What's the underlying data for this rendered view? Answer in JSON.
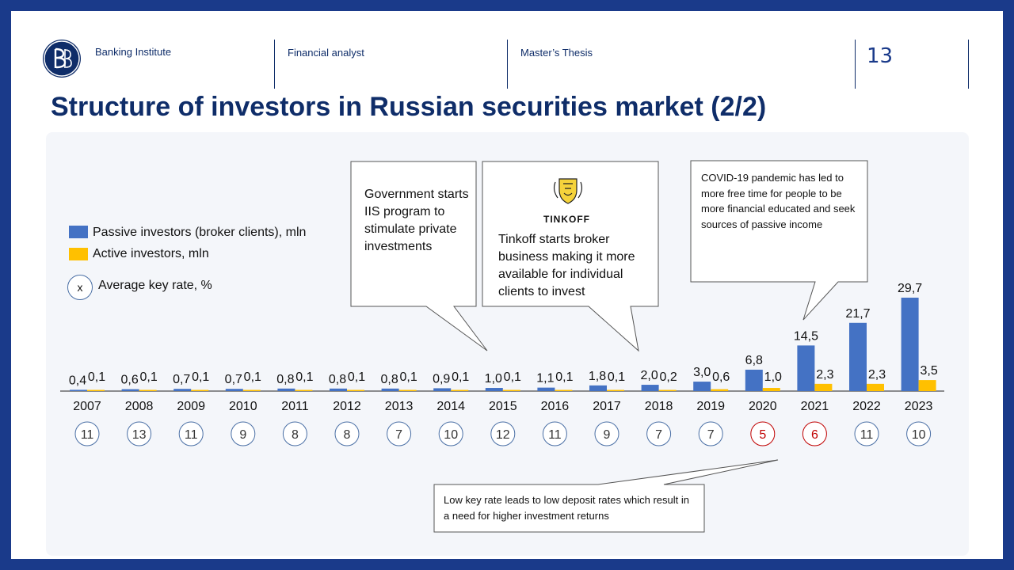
{
  "header": {
    "institute": "Banking Institute",
    "program": "Financial analyst",
    "work_type": "Master’s Thesis",
    "page_number": "13"
  },
  "slide_title": "Structure of investors in Russian securities market (2/2)",
  "legend": {
    "passive_label": "Passive investors (broker clients), mln",
    "active_label": "Active investors, mln",
    "rate_marker": "x",
    "rate_label": "Average key rate, %"
  },
  "callouts": {
    "iis": "Government starts IIS program to stimulate private investments",
    "tinkoff_logo_text": "TINKOFF",
    "tinkoff": "Tinkoff starts broker business making it more available for individual clients to invest",
    "covid": "COVID-19 pandemic has led to more  free time for people to be more  financial educated and seek sources of passive income",
    "key_rate": "Low key rate leads to low deposit rates which result in a need for higher investment returns"
  },
  "colors": {
    "passive": "#4472c4",
    "active": "#ffc000",
    "rate_circle_normal": "#4a6fa5",
    "rate_circle_low": "#c00000",
    "title": "#0f2d69"
  },
  "chart_data": {
    "type": "bar",
    "categories": [
      "2007",
      "2008",
      "2009",
      "2010",
      "2011",
      "2012",
      "2013",
      "2014",
      "2015",
      "2016",
      "2017",
      "2018",
      "2019",
      "2020",
      "2021",
      "2022",
      "2023"
    ],
    "series": [
      {
        "name": "Passive investors (broker clients), mln",
        "values": [
          0.4,
          0.6,
          0.7,
          0.7,
          0.8,
          0.8,
          0.8,
          0.9,
          1.0,
          1.1,
          1.8,
          2.0,
          3.0,
          6.8,
          14.5,
          21.7,
          29.7
        ]
      },
      {
        "name": "Active investors, mln",
        "values": [
          0.1,
          0.1,
          0.1,
          0.1,
          0.1,
          0.1,
          0.1,
          0.1,
          0.1,
          0.1,
          0.1,
          0.2,
          0.6,
          1.0,
          2.3,
          2.3,
          3.5
        ]
      }
    ],
    "passive_labels": [
      "0,4",
      "0,6",
      "0,7",
      "0,7",
      "0,8",
      "0,8",
      "0,8",
      "0,9",
      "1,0",
      "1,1",
      "1,8",
      "2,0",
      "3,0",
      "6,8",
      "14,5",
      "21,7",
      "29,7"
    ],
    "active_labels": [
      "0,1",
      "0,1",
      "0,1",
      "0,1",
      "0,1",
      "0,1",
      "0,1",
      "0,1",
      "0,1",
      "0,1",
      "0,1",
      "0,2",
      "0,6",
      "1,0",
      "2,3",
      "2,3",
      "3,5"
    ],
    "key_rate": {
      "name": "Average key rate, %",
      "values": [
        11,
        13,
        11,
        9,
        8,
        8,
        7,
        10,
        12,
        11,
        9,
        7,
        7,
        5,
        6,
        11,
        10
      ],
      "highlighted": [
        "2020",
        "2021"
      ]
    },
    "title": "",
    "xlabel": "",
    "ylabel": "",
    "grid": false
  }
}
